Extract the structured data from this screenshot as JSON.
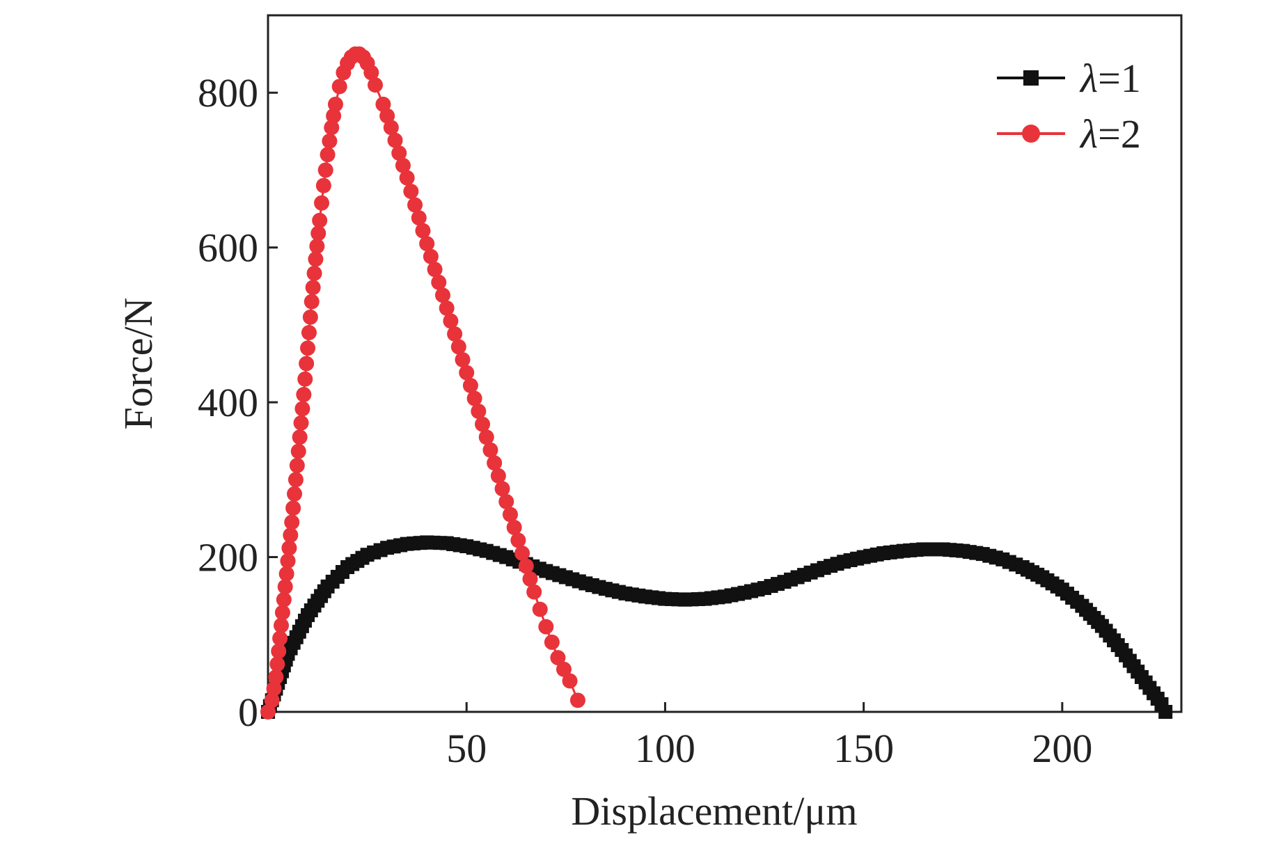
{
  "chart_data": {
    "type": "line",
    "title": "",
    "xlabel": "Displacement/μm",
    "ylabel": "Force/N",
    "xlim": [
      0,
      230
    ],
    "ylim": [
      0,
      900
    ],
    "x_ticks": [
      50,
      100,
      150,
      200
    ],
    "y_ticks": [
      0,
      200,
      400,
      600,
      800
    ],
    "grid": false,
    "legend_position": "top-right",
    "series": [
      {
        "name": "λ=1",
        "legend_symbol": "λ",
        "legend_value": "=1",
        "color": "#111111",
        "marker": "square",
        "points": [
          [
            0,
            0
          ],
          [
            2,
            30
          ],
          [
            5,
            75
          ],
          [
            10,
            125
          ],
          [
            15,
            162
          ],
          [
            20,
            187
          ],
          [
            25,
            203
          ],
          [
            30,
            212
          ],
          [
            35,
            217
          ],
          [
            40,
            219
          ],
          [
            45,
            218
          ],
          [
            50,
            214
          ],
          [
            55,
            208
          ],
          [
            60,
            200
          ],
          [
            65,
            191
          ],
          [
            70,
            182
          ],
          [
            75,
            174
          ],
          [
            80,
            166
          ],
          [
            85,
            159
          ],
          [
            90,
            153
          ],
          [
            95,
            149
          ],
          [
            100,
            146
          ],
          [
            105,
            145
          ],
          [
            110,
            146
          ],
          [
            115,
            149
          ],
          [
            120,
            154
          ],
          [
            125,
            160
          ],
          [
            130,
            168
          ],
          [
            135,
            177
          ],
          [
            140,
            186
          ],
          [
            145,
            194
          ],
          [
            150,
            200
          ],
          [
            155,
            205
          ],
          [
            160,
            208
          ],
          [
            165,
            210
          ],
          [
            170,
            210
          ],
          [
            175,
            208
          ],
          [
            180,
            204
          ],
          [
            185,
            197
          ],
          [
            190,
            187
          ],
          [
            195,
            174
          ],
          [
            200,
            158
          ],
          [
            205,
            137
          ],
          [
            210,
            111
          ],
          [
            215,
            80
          ],
          [
            220,
            45
          ],
          [
            225,
            10
          ],
          [
            226,
            0
          ]
        ]
      },
      {
        "name": "λ=2",
        "legend_symbol": "λ",
        "legend_value": "=2",
        "color": "#e8333a",
        "marker": "circle",
        "points": [
          [
            0,
            0
          ],
          [
            1,
            15
          ],
          [
            2,
            45
          ],
          [
            3,
            95
          ],
          [
            4,
            145
          ],
          [
            5,
            195
          ],
          [
            6,
            245
          ],
          [
            7,
            300
          ],
          [
            8,
            355
          ],
          [
            9,
            410
          ],
          [
            10,
            470
          ],
          [
            11,
            530
          ],
          [
            12,
            585
          ],
          [
            13,
            635
          ],
          [
            14,
            680
          ],
          [
            15,
            720
          ],
          [
            16,
            755
          ],
          [
            17,
            785
          ],
          [
            18,
            808
          ],
          [
            19,
            826
          ],
          [
            20,
            838
          ],
          [
            21,
            846
          ],
          [
            22,
            850
          ],
          [
            23,
            850
          ],
          [
            24,
            846
          ],
          [
            25,
            838
          ],
          [
            26,
            826
          ],
          [
            27,
            810
          ],
          [
            29,
            785
          ],
          [
            31,
            755
          ],
          [
            33,
            722
          ],
          [
            35,
            690
          ],
          [
            37,
            655
          ],
          [
            40,
            605
          ],
          [
            43,
            555
          ],
          [
            46,
            505
          ],
          [
            49,
            455
          ],
          [
            52,
            405
          ],
          [
            55,
            355
          ],
          [
            58,
            305
          ],
          [
            61,
            255
          ],
          [
            64,
            205
          ],
          [
            67,
            155
          ],
          [
            70,
            110
          ],
          [
            73,
            70
          ],
          [
            76,
            40
          ],
          [
            78,
            15
          ]
        ]
      }
    ]
  }
}
